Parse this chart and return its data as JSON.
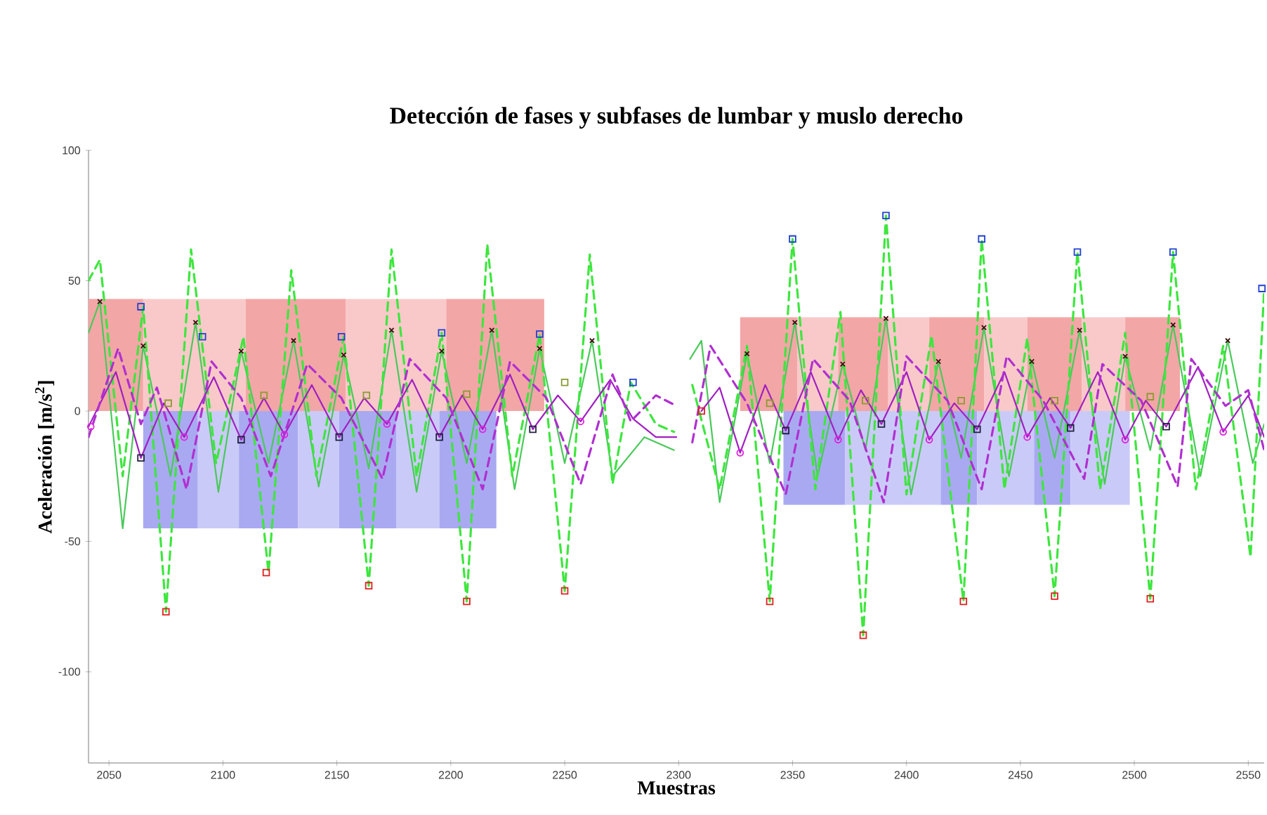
{
  "chart_data": {
    "type": "line",
    "title": "Detección de fases y subfases de lumbar y muslo derecho",
    "xlabel": "Muestras",
    "ylabel": "Aceleración [m/s$^{2}$]",
    "xlim": [
      2041,
      2557
    ],
    "ylim": [
      -135,
      100
    ],
    "xticks": [
      2050,
      2100,
      2150,
      2200,
      2250,
      2300,
      2350,
      2400,
      2450,
      2500,
      2550
    ],
    "yticks": [
      -100,
      -50,
      0,
      50,
      100
    ],
    "series": [
      {
        "type": "area",
        "color": "#f3a6a6",
        "x": [
          2041,
          2065
        ],
        "values": [
          43,
          43
        ]
      },
      {
        "type": "area",
        "color": "#f9c9c9",
        "x": [
          2065,
          2110
        ],
        "values": [
          43,
          43
        ]
      },
      {
        "type": "area",
        "color": "#f3a6a6",
        "x": [
          2110,
          2154
        ],
        "values": [
          43,
          43
        ]
      },
      {
        "type": "area",
        "color": "#f9c9c9",
        "x": [
          2154,
          2198
        ],
        "values": [
          43,
          43
        ]
      },
      {
        "type": "area",
        "color": "#f3a6a6",
        "x": [
          2198,
          2241
        ],
        "values": [
          43,
          43
        ]
      },
      {
        "type": "area",
        "color": "#a9a9f2",
        "x": [
          2065,
          2089
        ],
        "values": [
          -45,
          -45
        ]
      },
      {
        "type": "area",
        "color": "#cacaf8",
        "x": [
          2089,
          2107
        ],
        "values": [
          -45,
          -45
        ]
      },
      {
        "type": "area",
        "color": "#a9a9f2",
        "x": [
          2107,
          2133
        ],
        "values": [
          -45,
          -45
        ]
      },
      {
        "type": "area",
        "color": "#cacaf8",
        "x": [
          2133,
          2151
        ],
        "values": [
          -45,
          -45
        ]
      },
      {
        "type": "area",
        "color": "#a9a9f2",
        "x": [
          2151,
          2176
        ],
        "values": [
          -45,
          -45
        ]
      },
      {
        "type": "area",
        "color": "#cacaf8",
        "x": [
          2176,
          2195
        ],
        "values": [
          -45,
          -45
        ]
      },
      {
        "type": "area",
        "color": "#a9a9f2",
        "x": [
          2195,
          2220
        ],
        "values": [
          -45,
          -45
        ]
      },
      {
        "type": "area",
        "color": "#f3a6a6",
        "x": [
          2327,
          2352
        ],
        "values": [
          36,
          36
        ]
      },
      {
        "type": "area",
        "color": "#f9c9c9",
        "x": [
          2352,
          2370
        ],
        "values": [
          36,
          36
        ]
      },
      {
        "type": "area",
        "color": "#f3a6a6",
        "x": [
          2370,
          2392
        ],
        "values": [
          36,
          36
        ]
      },
      {
        "type": "area",
        "color": "#f9c9c9",
        "x": [
          2392,
          2410
        ],
        "values": [
          36,
          36
        ]
      },
      {
        "type": "area",
        "color": "#f3a6a6",
        "x": [
          2410,
          2434
        ],
        "values": [
          36,
          36
        ]
      },
      {
        "type": "area",
        "color": "#f9c9c9",
        "x": [
          2434,
          2453
        ],
        "values": [
          36,
          36
        ]
      },
      {
        "type": "area",
        "color": "#f3a6a6",
        "x": [
          2453,
          2477
        ],
        "values": [
          36,
          36
        ]
      },
      {
        "type": "area",
        "color": "#f9c9c9",
        "x": [
          2477,
          2496
        ],
        "values": [
          36,
          36
        ]
      },
      {
        "type": "area",
        "color": "#f3a6a6",
        "x": [
          2496,
          2520
        ],
        "values": [
          36,
          36
        ]
      },
      {
        "type": "area",
        "color": "#a9a9f2",
        "x": [
          2346,
          2373
        ],
        "values": [
          -36,
          -36
        ]
      },
      {
        "type": "area",
        "color": "#cacaf8",
        "x": [
          2373,
          2415
        ],
        "values": [
          -36,
          -36
        ]
      },
      {
        "type": "area",
        "color": "#a9a9f2",
        "x": [
          2415,
          2431
        ],
        "values": [
          -36,
          -36
        ]
      },
      {
        "type": "area",
        "color": "#cacaf8",
        "x": [
          2431,
          2456
        ],
        "values": [
          -36,
          -36
        ]
      },
      {
        "type": "area",
        "color": "#a9a9f2",
        "x": [
          2456,
          2472
        ],
        "values": [
          -36,
          -36
        ]
      },
      {
        "type": "area",
        "color": "#cacaf8",
        "x": [
          2472,
          2498
        ],
        "values": [
          -36,
          -36
        ]
      },
      {
        "color": "#49c95a",
        "line_style": "solid",
        "x": [
          2041,
          2046,
          2056,
          2065,
          2077,
          2088,
          2098,
          2108,
          2120,
          2131,
          2142,
          2153,
          2164,
          2174,
          2185,
          2196,
          2207,
          2218,
          2228,
          2239,
          2250,
          2262,
          2271,
          2285,
          2298,
          2303,
          2305,
          2310,
          2318,
          2330,
          2340,
          2351,
          2361,
          2372,
          2382,
          2391,
          2402,
          2414,
          2424,
          2434,
          2445,
          2455,
          2465,
          2476,
          2487,
          2496,
          2507,
          2517,
          2529,
          2541,
          2552,
          2557
        ],
        "values": [
          30,
          42,
          -45,
          25,
          -25,
          34,
          -31,
          23,
          -20,
          27,
          -29,
          21.5,
          -22,
          31,
          -31,
          23,
          -20,
          31,
          -30,
          24,
          -20,
          27,
          -25,
          -10,
          -15,
          null,
          20,
          27,
          -35,
          22,
          -20,
          34,
          -25,
          18,
          -15,
          35.5,
          -32,
          19,
          -18,
          32,
          -25,
          19,
          -18,
          31,
          -28,
          21,
          -15,
          33,
          -25,
          27,
          -20,
          -5
        ]
      },
      {
        "color": "#3ee63e",
        "line_style": "dashed",
        "x": [
          2041,
          2046,
          2056,
          2065,
          2075,
          2086,
          2097,
          2109,
          2120,
          2130,
          2141,
          2153,
          2164,
          2174,
          2185,
          2196,
          2207,
          2216,
          2227,
          2239,
          2250,
          2261,
          2271,
          2279,
          2290,
          2298,
          2303,
          2306,
          2318,
          2330,
          2340,
          2350,
          2360,
          2371,
          2381,
          2391,
          2400,
          2411,
          2425,
          2433,
          2443,
          2453,
          2465,
          2475,
          2485,
          2496,
          2507,
          2517,
          2527,
          2539,
          2551,
          2557
        ],
        "values": [
          50,
          58,
          -25,
          40,
          -77,
          62,
          -20,
          28.5,
          -62,
          54,
          -25,
          28.5,
          -67,
          62,
          -25,
          30,
          -73,
          64,
          -25,
          29.5,
          -69,
          60,
          -28,
          11,
          -5,
          -8,
          null,
          10,
          -30,
          25,
          -73,
          66,
          -30,
          38,
          -86,
          75,
          -32,
          29,
          -73,
          66,
          -30,
          28,
          -71,
          61,
          -30,
          30,
          -72,
          61,
          -30,
          25,
          -56,
          47
        ]
      },
      {
        "color": "#a020c0",
        "line_style": "solid",
        "x": [
          2041,
          2053,
          2064,
          2074,
          2083,
          2096,
          2108,
          2118,
          2127,
          2139,
          2151,
          2162,
          2172,
          2183,
          2195,
          2205,
          2214,
          2226,
          2236,
          2247,
          2257,
          2270,
          2280,
          2290,
          2299,
          2303,
          2310,
          2318,
          2327,
          2338,
          2347,
          2358,
          2370,
          2380,
          2389,
          2400,
          2410,
          2421,
          2431,
          2443,
          2453,
          2463,
          2472,
          2484,
          2496,
          2505,
          2514,
          2528,
          2539,
          2550,
          2557
        ],
        "values": [
          -6,
          15,
          -18,
          3,
          -10,
          13,
          -11,
          5,
          -9,
          10,
          -10,
          5,
          -5,
          12,
          -10,
          6,
          -7,
          14,
          -7,
          6,
          -4,
          12,
          -3,
          -10,
          -10,
          null,
          0,
          9,
          -16,
          10,
          -7.5,
          15,
          -11,
          8,
          -5,
          15,
          -11,
          3,
          -7,
          15,
          -10,
          5,
          -6.5,
          15,
          -11,
          4,
          -6,
          17,
          -8,
          6,
          -10
        ]
      },
      {
        "color": "#b030d0",
        "line_style": "dashed",
        "x": [
          2041,
          2054,
          2064,
          2071,
          2084,
          2095,
          2108,
          2121,
          2137,
          2152,
          2170,
          2182,
          2198,
          2214,
          2226,
          2242,
          2257,
          2271,
          2279,
          2290,
          2299,
          2303,
          2306,
          2314,
          2330,
          2347,
          2359,
          2375,
          2390,
          2400,
          2418,
          2433,
          2444,
          2460,
          2478,
          2486,
          2503,
          2519,
          2525,
          2540,
          2550,
          2557
        ],
        "values": [
          -10,
          24,
          -5,
          9,
          -30,
          19,
          5,
          -25,
          18,
          5,
          -26,
          20,
          5,
          -30,
          19,
          5,
          -28,
          14,
          -4,
          6,
          2,
          null,
          -12,
          25,
          3,
          -32,
          20,
          4,
          -35,
          21,
          4,
          -30,
          21,
          4,
          -26,
          18,
          4,
          -29,
          20,
          2,
          8,
          -15
        ]
      },
      {
        "type": "scatter",
        "marker": "square",
        "color": "#2040d0",
        "x": [
          2064,
          2091,
          2152,
          2196,
          2239,
          2280,
          2350,
          2391,
          2433,
          2475,
          2517,
          2556
        ],
        "values": [
          40,
          28.5,
          28.5,
          30,
          29.5,
          11,
          66,
          75,
          66,
          61,
          61,
          47
        ]
      },
      {
        "type": "scatter",
        "marker": "square",
        "color": "#e02020",
        "x": [
          2075,
          2119,
          2164,
          2207,
          2250,
          2310,
          2340,
          2381,
          2425,
          2465,
          2507
        ],
        "values": [
          -77,
          -62,
          -67,
          -73,
          -69,
          0,
          -73,
          -86,
          -73,
          -71,
          -72
        ]
      },
      {
        "type": "scatter",
        "marker": "square",
        "color": "#8a9a30",
        "x": [
          2076,
          2118,
          2163,
          2207,
          2250,
          2340,
          2382,
          2424,
          2465,
          2507
        ],
        "values": [
          3,
          6,
          6,
          6.5,
          11,
          3,
          4,
          4,
          4,
          5.5
        ]
      },
      {
        "type": "scatter",
        "marker": "cross",
        "color": "#3a1010",
        "x": [
          2046,
          2065,
          2088,
          2108,
          2131,
          2153,
          2174,
          2196,
          2218,
          2239,
          2262,
          2330,
          2351,
          2372,
          2391,
          2414,
          2434,
          2455,
          2476,
          2496,
          2517,
          2541
        ],
        "values": [
          42,
          25,
          34,
          23,
          27,
          21.5,
          31,
          23,
          31,
          24,
          27,
          22,
          34,
          18,
          35.5,
          19,
          32,
          19,
          31,
          21,
          33,
          27
        ]
      },
      {
        "type": "scatter",
        "marker": "circle",
        "color": "#e020e0",
        "x": [
          2042,
          2083,
          2127,
          2172,
          2214,
          2257,
          2327,
          2370,
          2410,
          2453,
          2496,
          2539
        ],
        "values": [
          -6,
          -10,
          -9,
          -5,
          -7,
          -4,
          -16,
          -11,
          -11,
          -10,
          -11,
          -8
        ]
      },
      {
        "type": "scatter",
        "marker": "square",
        "color": "#202040",
        "x": [
          2064,
          2108,
          2151,
          2195,
          2236,
          2347,
          2389,
          2431,
          2472,
          2514
        ],
        "values": [
          -18,
          -11,
          -10,
          -10,
          -7,
          -7.5,
          -5,
          -7,
          -6.5,
          -6
        ]
      }
    ]
  }
}
